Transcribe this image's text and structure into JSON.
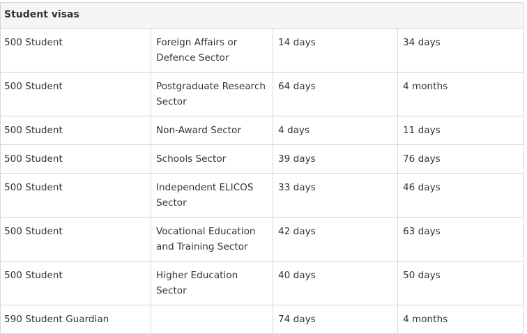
{
  "table": {
    "section_title": "Student visas",
    "rows": [
      [
        "500 Student",
        "Foreign Affairs or Defence Sector",
        "14 days",
        "34 days"
      ],
      [
        "500 Student",
        "Postgraduate Research Sector",
        "64 days",
        "4 months"
      ],
      [
        "500 Student",
        "Non-Award Sector",
        "4 days",
        "11 days"
      ],
      [
        "500 Student",
        "Schools Sector",
        "39 days",
        "76 days"
      ],
      [
        "500 Student",
        "Independent ELICOS Sector",
        "33 days",
        "46 days"
      ],
      [
        "500 Student",
        "Vocational Education and Training Sector",
        "42 days",
        "63 days"
      ],
      [
        "500 Student",
        "Higher Education Sector",
        "40 days",
        "50 days"
      ],
      [
        "590 Student Guardian",
        "",
        "74 days",
        "4 months"
      ]
    ]
  }
}
